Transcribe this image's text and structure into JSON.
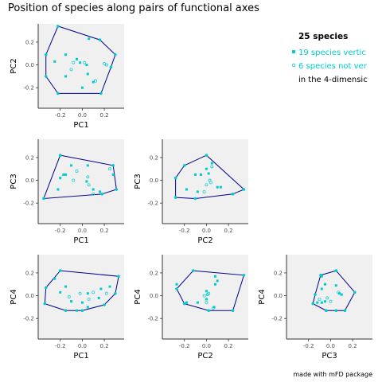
{
  "title": "Position of species along pairs of functional axes",
  "credit": "made with mFD package",
  "colors": {
    "panel_bg": "#f0f0f0",
    "hull": "#00008b",
    "vertex": "#00cccc",
    "non_vertex": "#00cccc",
    "legend_text_accent": "#00cccc"
  },
  "legend": {
    "title": "25 species",
    "items": [
      {
        "label": "19 species vertic",
        "symbol": "filled-square",
        "color": "#00cccc"
      },
      {
        "label": "6 species not ver",
        "symbol": "open-circle",
        "color": "#00cccc"
      },
      {
        "label": "in the 4-dimensic",
        "symbol": "",
        "color": "#000000"
      }
    ]
  },
  "chart_data": [
    {
      "type": "scatter",
      "xlabel": "PC1",
      "ylabel": "PC2",
      "xlim": [
        -0.4,
        0.38
      ],
      "ylim": [
        -0.38,
        0.36
      ],
      "xticks": [
        "-0.2",
        "0.0",
        "0.2"
      ],
      "xtick_values": [
        -0.2,
        0.0,
        0.2
      ],
      "yticks": [
        "0.2",
        "0.0",
        "-0.2"
      ],
      "ytick_values": [
        0.2,
        0.0,
        -0.2
      ],
      "hull": [
        [
          -0.22,
          0.34
        ],
        [
          0.16,
          0.22
        ],
        [
          0.3,
          0.09
        ],
        [
          0.26,
          -0.02
        ],
        [
          0.17,
          -0.25
        ],
        [
          -0.22,
          -0.25
        ],
        [
          -0.33,
          -0.1
        ],
        [
          -0.33,
          0.09
        ]
      ],
      "points": [
        {
          "x": -0.15,
          "y": 0.09,
          "vertex": true
        },
        {
          "x": 0.06,
          "y": 0.23,
          "vertex": true
        },
        {
          "x": -0.05,
          "y": 0.05,
          "vertex": true
        },
        {
          "x": -0.02,
          "y": 0.02,
          "vertex": true
        },
        {
          "x": 0.04,
          "y": 0.0,
          "vertex": true
        },
        {
          "x": -0.25,
          "y": 0.03,
          "vertex": true
        },
        {
          "x": 0.05,
          "y": -0.08,
          "vertex": true
        },
        {
          "x": -0.15,
          "y": -0.1,
          "vertex": true
        },
        {
          "x": 0.1,
          "y": -0.15,
          "vertex": true
        },
        {
          "x": 0.0,
          "y": -0.2,
          "vertex": true
        },
        {
          "x": 0.2,
          "y": 0.01,
          "vertex": false
        },
        {
          "x": 0.22,
          "y": 0.0,
          "vertex": false
        },
        {
          "x": -0.1,
          "y": -0.04,
          "vertex": false
        },
        {
          "x": 0.02,
          "y": 0.02,
          "vertex": false
        },
        {
          "x": -0.08,
          "y": 0.02,
          "vertex": false
        },
        {
          "x": 0.12,
          "y": -0.14,
          "vertex": false
        }
      ]
    },
    {
      "type": "scatter",
      "xlabel": "PC1",
      "ylabel": "PC3",
      "xlim": [
        -0.4,
        0.38
      ],
      "ylim": [
        -0.38,
        0.36
      ],
      "xticks": [
        "-0.2",
        "0.0",
        "0.2"
      ],
      "xtick_values": [
        -0.2,
        0.0,
        0.2
      ],
      "yticks": [
        "0.2",
        "0.0",
        "-0.2"
      ],
      "ytick_values": [
        0.2,
        0.0,
        -0.2
      ],
      "hull": [
        [
          -0.2,
          0.22
        ],
        [
          0.28,
          0.13
        ],
        [
          0.31,
          -0.08
        ],
        [
          0.18,
          -0.12
        ],
        [
          -0.35,
          -0.16
        ]
      ],
      "points": [
        {
          "x": -0.15,
          "y": 0.05,
          "vertex": true
        },
        {
          "x": -0.1,
          "y": 0.13,
          "vertex": true
        },
        {
          "x": -0.17,
          "y": 0.05,
          "vertex": true
        },
        {
          "x": 0.05,
          "y": 0.13,
          "vertex": true
        },
        {
          "x": -0.2,
          "y": 0.02,
          "vertex": true
        },
        {
          "x": -0.22,
          "y": -0.08,
          "vertex": true
        },
        {
          "x": 0.04,
          "y": -0.01,
          "vertex": true
        },
        {
          "x": 0.1,
          "y": -0.08,
          "vertex": true
        },
        {
          "x": 0.16,
          "y": -0.1,
          "vertex": true
        },
        {
          "x": 0.28,
          "y": 0.05,
          "vertex": true
        },
        {
          "x": 0.25,
          "y": 0.1,
          "vertex": false
        },
        {
          "x": -0.05,
          "y": 0.08,
          "vertex": false
        },
        {
          "x": 0.05,
          "y": 0.03,
          "vertex": false
        },
        {
          "x": -0.08,
          "y": 0.0,
          "vertex": false
        },
        {
          "x": 0.06,
          "y": -0.04,
          "vertex": false
        },
        {
          "x": 0.1,
          "y": -0.12,
          "vertex": false
        }
      ]
    },
    {
      "type": "scatter",
      "xlabel": "PC2",
      "ylabel": "PC3",
      "xlim": [
        -0.4,
        0.38
      ],
      "ylim": [
        -0.38,
        0.36
      ],
      "xticks": [
        "-0.2",
        "0.0",
        "0.2"
      ],
      "xtick_values": [
        -0.2,
        0.0,
        0.2
      ],
      "yticks": [
        "0.2",
        "0.0",
        "-0.2"
      ],
      "ytick_values": [
        0.2,
        0.0,
        -0.2
      ],
      "hull": [
        [
          0.0,
          0.22
        ],
        [
          0.34,
          -0.08
        ],
        [
          0.24,
          -0.12
        ],
        [
          -0.1,
          -0.16
        ],
        [
          -0.28,
          -0.15
        ],
        [
          -0.28,
          0.02
        ],
        [
          -0.2,
          0.13
        ]
      ],
      "points": [
        {
          "x": -0.1,
          "y": 0.05,
          "vertex": true
        },
        {
          "x": 0.0,
          "y": 0.1,
          "vertex": true
        },
        {
          "x": 0.02,
          "y": 0.06,
          "vertex": true
        },
        {
          "x": 0.05,
          "y": 0.15,
          "vertex": true
        },
        {
          "x": -0.05,
          "y": 0.05,
          "vertex": true
        },
        {
          "x": -0.18,
          "y": -0.08,
          "vertex": true
        },
        {
          "x": 0.1,
          "y": -0.06,
          "vertex": true
        },
        {
          "x": 0.13,
          "y": -0.06,
          "vertex": true
        },
        {
          "x": -0.08,
          "y": -0.1,
          "vertex": true
        },
        {
          "x": 0.03,
          "y": 0.0,
          "vertex": false
        },
        {
          "x": 0.0,
          "y": -0.04,
          "vertex": false
        },
        {
          "x": -0.02,
          "y": -0.1,
          "vertex": false
        },
        {
          "x": 0.05,
          "y": 0.12,
          "vertex": false
        },
        {
          "x": 0.04,
          "y": -0.02,
          "vertex": false
        }
      ]
    },
    {
      "type": "scatter",
      "xlabel": "PC1",
      "ylabel": "PC4",
      "xlim": [
        -0.4,
        0.38
      ],
      "ylim": [
        -0.38,
        0.36
      ],
      "xticks": [
        "-0.2",
        "0.0",
        "0.2"
      ],
      "xtick_values": [
        -0.2,
        0.0,
        0.2
      ],
      "yticks": [
        "0.2",
        "0.0",
        "-0.2"
      ],
      "ytick_values": [
        0.2,
        0.0,
        -0.2
      ],
      "hull": [
        [
          -0.2,
          0.22
        ],
        [
          0.33,
          0.17
        ],
        [
          0.3,
          0.02
        ],
        [
          0.2,
          -0.08
        ],
        [
          0.0,
          -0.13
        ],
        [
          -0.15,
          -0.13
        ],
        [
          -0.34,
          -0.07
        ],
        [
          -0.33,
          0.07
        ]
      ],
      "points": [
        {
          "x": -0.15,
          "y": 0.08,
          "vertex": true
        },
        {
          "x": -0.25,
          "y": 0.15,
          "vertex": true
        },
        {
          "x": 0.17,
          "y": 0.06,
          "vertex": true
        },
        {
          "x": -0.2,
          "y": 0.03,
          "vertex": true
        },
        {
          "x": 0.05,
          "y": 0.02,
          "vertex": true
        },
        {
          "x": 0.15,
          "y": -0.02,
          "vertex": true
        },
        {
          "x": -0.1,
          "y": -0.05,
          "vertex": true
        },
        {
          "x": 0.0,
          "y": -0.06,
          "vertex": true
        },
        {
          "x": 0.05,
          "y": -0.1,
          "vertex": true
        },
        {
          "x": -0.05,
          "y": -0.13,
          "vertex": true
        },
        {
          "x": 0.25,
          "y": 0.08,
          "vertex": true
        },
        {
          "x": 0.22,
          "y": 0.02,
          "vertex": false
        },
        {
          "x": -0.02,
          "y": 0.02,
          "vertex": false
        },
        {
          "x": -0.12,
          "y": -0.01,
          "vertex": false
        },
        {
          "x": 0.06,
          "y": -0.03,
          "vertex": false
        },
        {
          "x": 0.1,
          "y": 0.03,
          "vertex": false
        }
      ]
    },
    {
      "type": "scatter",
      "xlabel": "PC2",
      "ylabel": "PC4",
      "xlim": [
        -0.4,
        0.38
      ],
      "ylim": [
        -0.38,
        0.36
      ],
      "xticks": [
        "-0.2",
        "0.0",
        "0.2"
      ],
      "xtick_values": [
        -0.2,
        0.0,
        0.2
      ],
      "yticks": [
        "0.2",
        "0.0",
        "-0.2"
      ],
      "ytick_values": [
        0.2,
        0.0,
        -0.2
      ],
      "hull": [
        [
          -0.12,
          0.22
        ],
        [
          0.34,
          0.18
        ],
        [
          0.24,
          -0.13
        ],
        [
          0.02,
          -0.13
        ],
        [
          -0.2,
          -0.07
        ],
        [
          -0.27,
          0.06
        ]
      ],
      "points": [
        {
          "x": 0.08,
          "y": 0.17,
          "vertex": true
        },
        {
          "x": 0.1,
          "y": 0.13,
          "vertex": true
        },
        {
          "x": 0.08,
          "y": 0.1,
          "vertex": true
        },
        {
          "x": 0.0,
          "y": 0.04,
          "vertex": true
        },
        {
          "x": -0.27,
          "y": 0.1,
          "vertex": true
        },
        {
          "x": -0.18,
          "y": -0.06,
          "vertex": true
        },
        {
          "x": 0.0,
          "y": -0.03,
          "vertex": true
        },
        {
          "x": 0.07,
          "y": -0.1,
          "vertex": true
        },
        {
          "x": -0.08,
          "y": -0.06,
          "vertex": true
        },
        {
          "x": -0.02,
          "y": 0.0,
          "vertex": false
        },
        {
          "x": 0.02,
          "y": 0.02,
          "vertex": false
        },
        {
          "x": 0.0,
          "y": -0.06,
          "vertex": false
        },
        {
          "x": 0.06,
          "y": -0.11,
          "vertex": false
        },
        {
          "x": 0.01,
          "y": 0.01,
          "vertex": false
        }
      ]
    },
    {
      "type": "scatter",
      "xlabel": "PC3",
      "ylabel": "PC4",
      "xlim": [
        -0.4,
        0.38
      ],
      "ylim": [
        -0.38,
        0.36
      ],
      "xticks": [
        "-0.2",
        "0.0",
        "0.2"
      ],
      "xtick_values": [
        -0.2,
        0.0,
        0.2
      ],
      "yticks": [
        "0.2",
        "0.0",
        "-0.2"
      ],
      "ytick_values": [
        0.2,
        0.0,
        -0.2
      ],
      "hull": [
        [
          0.05,
          0.22
        ],
        [
          0.22,
          0.03
        ],
        [
          0.13,
          -0.13
        ],
        [
          0.05,
          -0.13
        ],
        [
          -0.04,
          -0.13
        ],
        [
          -0.16,
          -0.07
        ],
        [
          -0.14,
          0.01
        ],
        [
          -0.09,
          0.18
        ]
      ],
      "points": [
        {
          "x": -0.08,
          "y": 0.17,
          "vertex": true
        },
        {
          "x": -0.05,
          "y": 0.1,
          "vertex": true
        },
        {
          "x": 0.05,
          "y": 0.09,
          "vertex": true
        },
        {
          "x": -0.08,
          "y": 0.06,
          "vertex": true
        },
        {
          "x": 0.08,
          "y": 0.02,
          "vertex": true
        },
        {
          "x": 0.1,
          "y": 0.01,
          "vertex": true
        },
        {
          "x": -0.12,
          "y": -0.06,
          "vertex": true
        },
        {
          "x": -0.05,
          "y": -0.05,
          "vertex": true
        },
        {
          "x": -0.08,
          "y": -0.06,
          "vertex": true
        },
        {
          "x": 0.07,
          "y": 0.03,
          "vertex": false
        },
        {
          "x": -0.03,
          "y": -0.02,
          "vertex": false
        },
        {
          "x": 0.0,
          "y": -0.05,
          "vertex": false
        },
        {
          "x": -0.1,
          "y": -0.03,
          "vertex": false
        }
      ]
    }
  ]
}
